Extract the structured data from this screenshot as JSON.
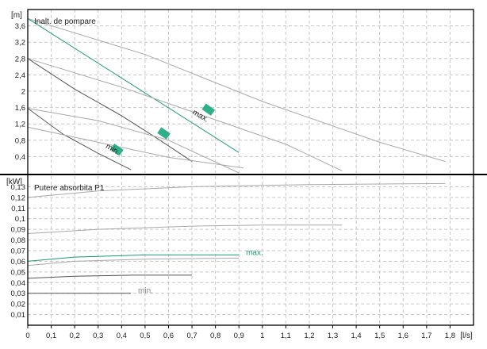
{
  "chart_data": [
    {
      "type": "line",
      "title": "Inalt. de pompare",
      "ylabel": "[m]",
      "xlabel": "[l/s]",
      "xlim": [
        0,
        1.9
      ],
      "ylim": [
        0,
        4.0
      ],
      "grid": true,
      "y_ticks": [
        "0,4",
        "0,8",
        "1,2",
        "1,6",
        "2",
        "2,4",
        "2,8",
        "3,2",
        "3,6"
      ],
      "y_tick_values": [
        0.4,
        0.8,
        1.2,
        1.6,
        2.0,
        2.4,
        2.8,
        3.2,
        3.6
      ],
      "series": [
        {
          "points": [
            [
              0,
              3.78
            ],
            [
              0.9,
              0.5
            ]
          ],
          "color": "#1b9a78"
        },
        {
          "points": [
            [
              0,
              3.78
            ],
            [
              0.5,
              2.9
            ],
            [
              1.0,
              1.75
            ],
            [
              1.5,
              0.75
            ],
            [
              1.78,
              0.28
            ]
          ],
          "color": "#a8a8a8"
        },
        {
          "points": [
            [
              0,
              2.8
            ],
            [
              0.2,
              2.05
            ],
            [
              0.4,
              1.4
            ],
            [
              0.55,
              0.85
            ],
            [
              0.7,
              0.28
            ]
          ],
          "color": "#555555"
        },
        {
          "points": [
            [
              0,
              2.8
            ],
            [
              0.4,
              2.1
            ],
            [
              0.8,
              1.3
            ],
            [
              1.1,
              0.7
            ],
            [
              1.34,
              0.05
            ]
          ],
          "color": "#a8a8a8"
        },
        {
          "points": [
            [
              0,
              1.58
            ],
            [
              0.15,
              0.95
            ],
            [
              0.3,
              0.48
            ],
            [
              0.44,
              0.08
            ]
          ],
          "color": "#555555"
        },
        {
          "points": [
            [
              0,
              1.58
            ],
            [
              0.3,
              1.28
            ],
            [
              0.6,
              0.8
            ],
            [
              0.9,
              0.0
            ]
          ],
          "color": "#a8a8a8"
        },
        {
          "points": [
            [
              0,
              1.12
            ],
            [
              0.3,
              0.75
            ],
            [
              0.6,
              0.38
            ],
            [
              0.92,
              0.12
            ]
          ],
          "color": "#a8a8a8"
        }
      ],
      "annotations": [
        {
          "text": "max.",
          "x": 0.7,
          "y": 1.45,
          "color": "#222222"
        },
        {
          "text": "min.",
          "x": 0.33,
          "y": 0.62,
          "color": "#222222"
        }
      ],
      "markers": [
        {
          "x": 0.38,
          "y": 0.57,
          "color": "#2fb08a"
        },
        {
          "x": 0.58,
          "y": 0.97,
          "color": "#2fb08a"
        },
        {
          "x": 0.77,
          "y": 1.55,
          "color": "#2fb08a"
        }
      ]
    },
    {
      "type": "line",
      "title": "Putere absorbita P1",
      "ylabel": "[kW]",
      "xlabel": "[l/s]",
      "xlim": [
        0,
        1.9
      ],
      "ylim": [
        0,
        0.14
      ],
      "grid": true,
      "x_ticks": [
        "0",
        "0,1",
        "0,2",
        "0,3",
        "0,4",
        "0,5",
        "0,6",
        "0,7",
        "0,8",
        "0,9",
        "1",
        "1,1",
        "1,2",
        "1,3",
        "1,4",
        "1,5",
        "1,6",
        "1,7",
        "1,8"
      ],
      "x_tick_values": [
        0,
        0.1,
        0.2,
        0.3,
        0.4,
        0.5,
        0.6,
        0.7,
        0.8,
        0.9,
        1.0,
        1.1,
        1.2,
        1.3,
        1.4,
        1.5,
        1.6,
        1.7,
        1.8
      ],
      "y_ticks": [
        "0,01",
        "0,02",
        "0,03",
        "0,04",
        "0,05",
        "0,06",
        "0,07",
        "0,08",
        "0,09",
        "0,1",
        "0,11",
        "0,12",
        "0,13"
      ],
      "y_tick_values": [
        0.01,
        0.02,
        0.03,
        0.04,
        0.05,
        0.06,
        0.07,
        0.08,
        0.09,
        0.1,
        0.11,
        0.12,
        0.13
      ],
      "series": [
        {
          "points": [
            [
              0,
              0.12
            ],
            [
              0.3,
              0.126
            ],
            [
              0.7,
              0.13
            ],
            [
              1.2,
              0.132
            ],
            [
              1.78,
              0.133
            ]
          ],
          "color": "#a8a8a8"
        },
        {
          "points": [
            [
              0,
              0.086
            ],
            [
              0.3,
              0.09
            ],
            [
              0.7,
              0.093
            ],
            [
              1.0,
              0.094
            ],
            [
              1.34,
              0.094
            ]
          ],
          "color": "#a8a8a8"
        },
        {
          "points": [
            [
              0,
              0.06
            ],
            [
              0.2,
              0.064
            ],
            [
              0.5,
              0.066
            ],
            [
              0.9,
              0.066
            ]
          ],
          "color": "#1b9a78"
        },
        {
          "points": [
            [
              0,
              0.056
            ],
            [
              0.2,
              0.06
            ],
            [
              0.5,
              0.062
            ],
            [
              0.9,
              0.063
            ]
          ],
          "color": "#a8a8a8"
        },
        {
          "points": [
            [
              0,
              0.044
            ],
            [
              0.2,
              0.046
            ],
            [
              0.45,
              0.047
            ],
            [
              0.7,
              0.047
            ]
          ],
          "color": "#555555"
        },
        {
          "points": [
            [
              0,
              0.03
            ],
            [
              0.2,
              0.03
            ],
            [
              0.44,
              0.03
            ]
          ],
          "color": "#555555"
        }
      ],
      "annotations": [
        {
          "text": "max.",
          "x": 0.93,
          "y": 0.066,
          "color": "#1b9a78"
        },
        {
          "text": "min.",
          "x": 0.47,
          "y": 0.03,
          "color": "#888888"
        }
      ]
    }
  ]
}
